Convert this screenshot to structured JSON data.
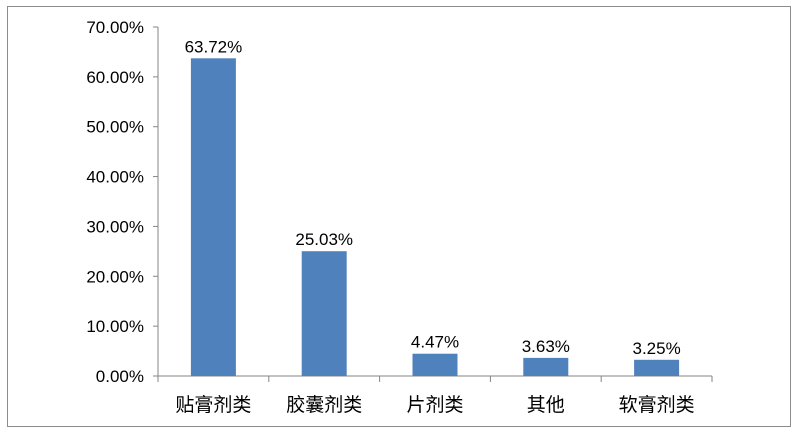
{
  "chart_data": {
    "type": "bar",
    "title": "",
    "xlabel": "",
    "ylabel": "",
    "categories": [
      "贴膏剂类",
      "胶囊剂类",
      "片剂类",
      "其他",
      "软膏剂类"
    ],
    "values": [
      63.72,
      25.03,
      4.47,
      3.63,
      3.25
    ],
    "data_labels": [
      "63.72%",
      "25.03%",
      "4.47%",
      "3.63%",
      "3.25%"
    ],
    "ylim": [
      0,
      70
    ],
    "yticks": [
      0,
      10,
      20,
      30,
      40,
      50,
      60,
      70
    ],
    "ytick_labels": [
      "0.00%",
      "10.00%",
      "20.00%",
      "30.00%",
      "40.00%",
      "50.00%",
      "60.00%",
      "70.00%"
    ],
    "grid": false,
    "legend": "none",
    "bar_color": "#4f81bd"
  }
}
